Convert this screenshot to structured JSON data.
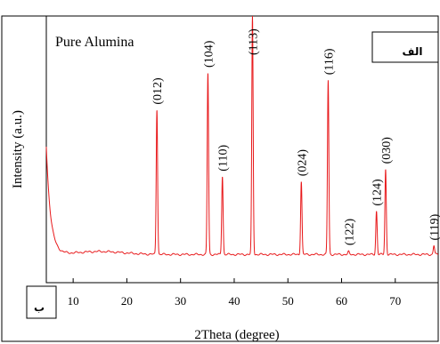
{
  "chart_data": {
    "type": "line",
    "title": "Pure Alumina",
    "xlabel": "2Theta (degree)",
    "ylabel": "Intensity (a.u.)",
    "xlim": [
      5,
      78
    ],
    "ylim": [
      0,
      100
    ],
    "x_ticks": [
      10,
      20,
      30,
      40,
      50,
      60,
      70
    ],
    "grid": false,
    "series": [
      {
        "color": "#e8191b",
        "peaks": [
          {
            "x": 25.6,
            "y": 62,
            "label": "(012)"
          },
          {
            "x": 35.1,
            "y": 77,
            "label": "(104)"
          },
          {
            "x": 37.8,
            "y": 35,
            "label": "(110)"
          },
          {
            "x": 43.4,
            "y": 100,
            "label": "(113)"
          },
          {
            "x": 52.5,
            "y": 33,
            "label": "(024)"
          },
          {
            "x": 57.5,
            "y": 74,
            "label": "(116)"
          },
          {
            "x": 61.3,
            "y": 5,
            "label": "(122)"
          },
          {
            "x": 66.5,
            "y": 21,
            "label": "(124)"
          },
          {
            "x": 68.2,
            "y": 38,
            "label": "(030)"
          },
          {
            "x": 77.2,
            "y": 7,
            "label": "(119)"
          }
        ]
      }
    ]
  },
  "annotations": {
    "top_right_box": "الف",
    "bottom_left_box": "ب"
  }
}
